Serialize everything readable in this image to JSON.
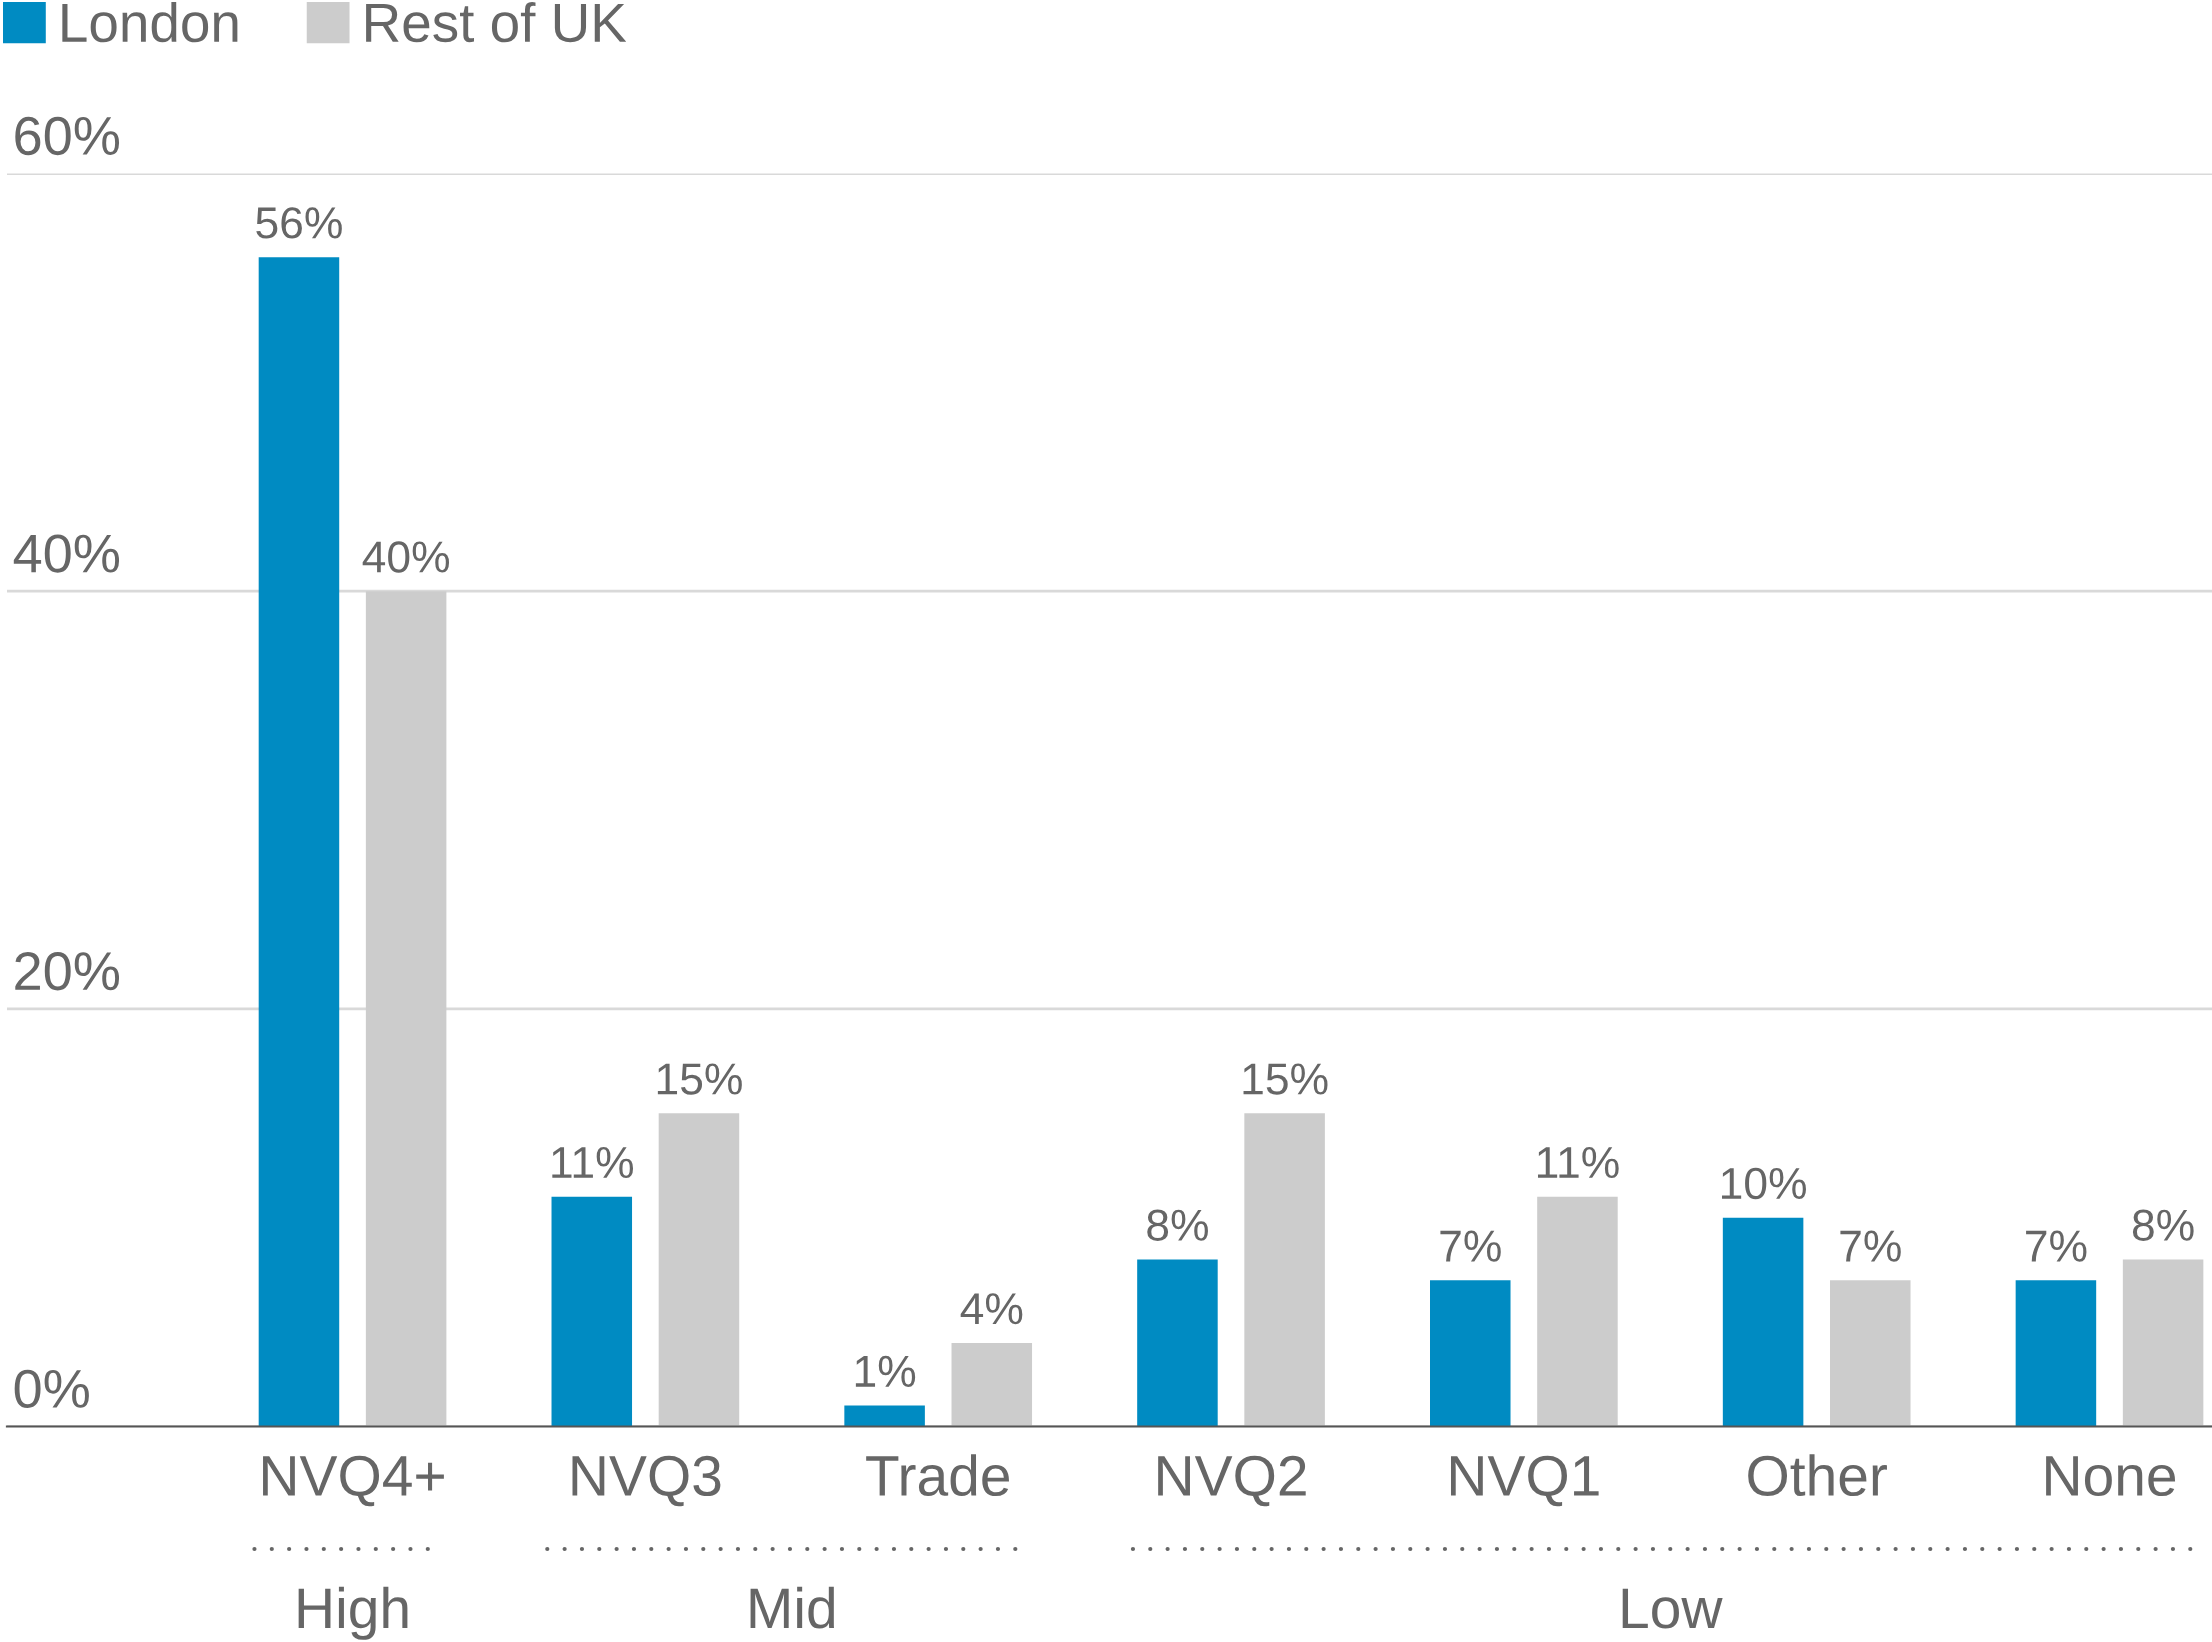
{
  "chart_data": {
    "type": "bar",
    "categories": [
      "NVQ4+",
      "NVQ3",
      "Trade",
      "NVQ2",
      "NVQ1",
      "Other",
      "None"
    ],
    "series": [
      {
        "name": "London",
        "color": "#008bc2",
        "values": [
          56,
          11,
          1,
          8,
          7,
          10,
          7
        ],
        "value_labels": [
          "56%",
          "11%",
          "1%",
          "8%",
          "7%",
          "10%",
          "7%"
        ]
      },
      {
        "name": "Rest of UK",
        "color": "#cccccc",
        "values": [
          40,
          15,
          4,
          15,
          11,
          7,
          8
        ],
        "value_labels": [
          "40%",
          "15%",
          "4%",
          "15%",
          "11%",
          "7%",
          "8%"
        ]
      }
    ],
    "ylim": [
      0,
      60
    ],
    "yticks": [
      {
        "value": 0,
        "label": "0%"
      },
      {
        "value": 20,
        "label": "20%"
      },
      {
        "value": 40,
        "label": "40%"
      },
      {
        "value": 60,
        "label": "60%"
      }
    ],
    "grid": "y",
    "legend": "top left",
    "annotations": [
      "High",
      "Mid",
      "Low"
    ]
  }
}
